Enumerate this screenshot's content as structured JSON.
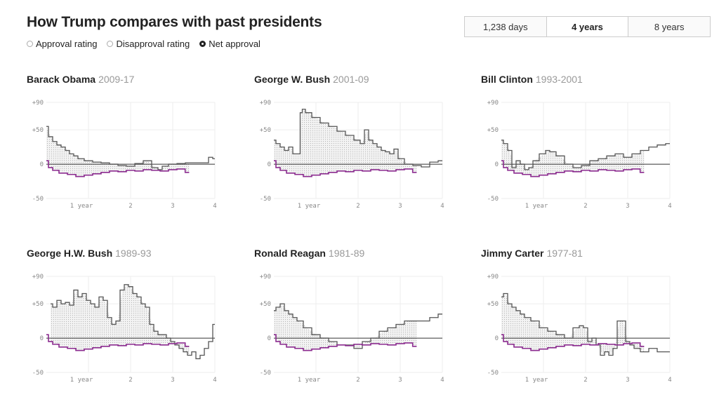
{
  "header": {
    "title": "How Trump compares with past presidents"
  },
  "metric_options": [
    {
      "label": "Approval rating",
      "selected": false
    },
    {
      "label": "Disapproval rating",
      "selected": false
    },
    {
      "label": "Net approval",
      "selected": true
    }
  ],
  "range_tabs": [
    {
      "label": "1,238 days",
      "active": false
    },
    {
      "label": "4 years",
      "active": true
    },
    {
      "label": "8 years",
      "active": false
    }
  ],
  "colors": {
    "president_line": "#555555",
    "trump_line": "#8b2b8f",
    "zero_line": "#333333",
    "grid": "#eeeeee"
  },
  "chart_data": [
    {
      "type": "line",
      "president": "Barack Obama",
      "years": "2009-17",
      "ylim": [
        -50,
        90
      ],
      "xlim": [
        0,
        4
      ],
      "y_ticks": [
        "+90",
        "+50",
        "0",
        "-50"
      ],
      "x_ticks": [
        "1 year",
        "2",
        "3",
        "4"
      ],
      "series": [
        {
          "name": "Barack Obama",
          "x": [
            0,
            0.1,
            0.2,
            0.3,
            0.4,
            0.5,
            0.6,
            0.7,
            0.8,
            1.0,
            1.2,
            1.4,
            1.6,
            1.8,
            2.0,
            2.2,
            2.4,
            2.6,
            2.7,
            2.8,
            3.0,
            3.2,
            3.4,
            3.6,
            3.8,
            3.9,
            4.0
          ],
          "y": [
            55,
            40,
            33,
            28,
            25,
            20,
            15,
            12,
            8,
            5,
            3,
            2,
            0,
            -2,
            -3,
            1,
            5,
            -5,
            -8,
            -3,
            0,
            1,
            2,
            2,
            2,
            10,
            8
          ]
        },
        {
          "name": "Donald Trump",
          "x": [
            0,
            0.1,
            0.2,
            0.4,
            0.6,
            0.8,
            1.0,
            1.2,
            1.4,
            1.6,
            1.8,
            2.0,
            2.2,
            2.4,
            2.6,
            2.8,
            3.0,
            3.2,
            3.39
          ],
          "y": [
            5,
            -5,
            -9,
            -13,
            -15,
            -18,
            -16,
            -14,
            -12,
            -10,
            -11,
            -9,
            -10,
            -8,
            -9,
            -10,
            -8,
            -7,
            -12
          ]
        }
      ]
    },
    {
      "type": "line",
      "president": "George W. Bush",
      "years": "2001-09",
      "ylim": [
        -50,
        90
      ],
      "xlim": [
        0,
        4
      ],
      "y_ticks": [
        "+90",
        "+50",
        "0",
        "-50"
      ],
      "x_ticks": [
        "1 year",
        "2",
        "3",
        "4"
      ],
      "series": [
        {
          "name": "George W. Bush",
          "x": [
            0,
            0.1,
            0.2,
            0.3,
            0.4,
            0.5,
            0.6,
            0.65,
            0.7,
            0.8,
            1.0,
            1.2,
            1.4,
            1.6,
            1.8,
            2.0,
            2.1,
            2.2,
            2.3,
            2.4,
            2.5,
            2.6,
            2.7,
            2.8,
            2.9,
            3.0,
            3.2,
            3.4,
            3.6,
            3.8,
            4.0
          ],
          "y": [
            35,
            30,
            25,
            20,
            25,
            15,
            15,
            75,
            80,
            75,
            68,
            60,
            55,
            48,
            42,
            35,
            30,
            50,
            35,
            30,
            25,
            20,
            18,
            15,
            22,
            8,
            0,
            -2,
            -4,
            3,
            5
          ]
        },
        {
          "name": "Donald Trump",
          "x": [
            0,
            0.1,
            0.2,
            0.4,
            0.6,
            0.8,
            1.0,
            1.2,
            1.4,
            1.6,
            1.8,
            2.0,
            2.2,
            2.4,
            2.6,
            2.8,
            3.0,
            3.2,
            3.39
          ],
          "y": [
            5,
            -5,
            -9,
            -13,
            -15,
            -18,
            -16,
            -14,
            -12,
            -10,
            -11,
            -9,
            -10,
            -8,
            -9,
            -10,
            -8,
            -7,
            -12
          ]
        }
      ]
    },
    {
      "type": "line",
      "president": "Bill Clinton",
      "years": "1993-2001",
      "ylim": [
        -50,
        90
      ],
      "xlim": [
        0,
        4
      ],
      "y_ticks": [
        "+90",
        "+50",
        "0",
        "-50"
      ],
      "x_ticks": [
        "1 year",
        "2",
        "3",
        "4"
      ],
      "series": [
        {
          "name": "Bill Clinton",
          "x": [
            0,
            0.1,
            0.2,
            0.3,
            0.4,
            0.5,
            0.6,
            0.7,
            0.8,
            1.0,
            1.1,
            1.2,
            1.4,
            1.6,
            1.8,
            2.0,
            2.2,
            2.4,
            2.6,
            2.8,
            3.0,
            3.2,
            3.4,
            3.6,
            3.8,
            4.0
          ],
          "y": [
            35,
            30,
            20,
            -5,
            5,
            0,
            -8,
            -5,
            5,
            15,
            20,
            18,
            12,
            0,
            -5,
            -2,
            5,
            8,
            12,
            15,
            10,
            15,
            20,
            25,
            28,
            30
          ]
        },
        {
          "name": "Donald Trump",
          "x": [
            0,
            0.1,
            0.2,
            0.4,
            0.6,
            0.8,
            1.0,
            1.2,
            1.4,
            1.6,
            1.8,
            2.0,
            2.2,
            2.4,
            2.6,
            2.8,
            3.0,
            3.2,
            3.39
          ],
          "y": [
            5,
            -5,
            -9,
            -13,
            -15,
            -18,
            -16,
            -14,
            -12,
            -10,
            -11,
            -9,
            -10,
            -8,
            -9,
            -10,
            -8,
            -7,
            -12
          ]
        }
      ]
    },
    {
      "type": "line",
      "president": "George H.W. Bush",
      "years": "1989-93",
      "ylim": [
        -50,
        90
      ],
      "xlim": [
        0,
        4
      ],
      "y_ticks": [
        "+90",
        "+50",
        "0",
        "-50"
      ],
      "x_ticks": [
        "1 year",
        "2",
        "3",
        "4"
      ],
      "series": [
        {
          "name": "George H.W. Bush",
          "x": [
            0.1,
            0.2,
            0.3,
            0.4,
            0.5,
            0.6,
            0.7,
            0.8,
            0.9,
            1.0,
            1.1,
            1.2,
            1.3,
            1.4,
            1.5,
            1.6,
            1.7,
            1.8,
            1.9,
            2.0,
            2.1,
            2.2,
            2.3,
            2.4,
            2.5,
            2.6,
            2.7,
            2.8,
            2.9,
            3.0,
            3.1,
            3.2,
            3.3,
            3.4,
            3.5,
            3.6,
            3.7,
            3.8,
            3.9,
            4.0
          ],
          "y": [
            50,
            45,
            55,
            50,
            52,
            48,
            70,
            60,
            65,
            55,
            50,
            45,
            60,
            55,
            30,
            20,
            25,
            70,
            78,
            75,
            65,
            60,
            50,
            45,
            20,
            10,
            5,
            5,
            0,
            -5,
            -10,
            -15,
            -20,
            -25,
            -20,
            -30,
            -25,
            -15,
            -5,
            20
          ]
        },
        {
          "name": "Donald Trump",
          "x": [
            0,
            0.1,
            0.2,
            0.4,
            0.6,
            0.8,
            1.0,
            1.2,
            1.4,
            1.6,
            1.8,
            2.0,
            2.2,
            2.4,
            2.6,
            2.8,
            3.0,
            3.2,
            3.39
          ],
          "y": [
            5,
            -5,
            -9,
            -13,
            -15,
            -18,
            -16,
            -14,
            -12,
            -10,
            -11,
            -9,
            -10,
            -8,
            -9,
            -10,
            -8,
            -7,
            -12
          ]
        }
      ]
    },
    {
      "type": "line",
      "president": "Ronald Reagan",
      "years": "1981-89",
      "ylim": [
        -50,
        90
      ],
      "xlim": [
        0,
        4
      ],
      "y_ticks": [
        "+90",
        "+50",
        "0",
        "-50"
      ],
      "x_ticks": [
        "1 year",
        "2",
        "3",
        "4"
      ],
      "series": [
        {
          "name": "Ronald Reagan",
          "x": [
            0,
            0.1,
            0.2,
            0.3,
            0.4,
            0.5,
            0.6,
            0.8,
            1.0,
            1.2,
            1.4,
            1.6,
            1.8,
            2.0,
            2.2,
            2.4,
            2.6,
            2.8,
            3.0,
            3.2,
            3.4,
            3.6,
            3.8,
            4.0
          ],
          "y": [
            40,
            45,
            50,
            40,
            35,
            30,
            25,
            15,
            5,
            0,
            -5,
            -10,
            -10,
            -15,
            -5,
            0,
            10,
            15,
            20,
            25,
            25,
            25,
            30,
            35
          ]
        },
        {
          "name": "Donald Trump",
          "x": [
            0,
            0.1,
            0.2,
            0.4,
            0.6,
            0.8,
            1.0,
            1.2,
            1.4,
            1.6,
            1.8,
            2.0,
            2.2,
            2.4,
            2.6,
            2.8,
            3.0,
            3.2,
            3.39
          ],
          "y": [
            5,
            -5,
            -9,
            -13,
            -15,
            -18,
            -16,
            -14,
            -12,
            -10,
            -11,
            -9,
            -10,
            -8,
            -9,
            -10,
            -8,
            -7,
            -12
          ]
        }
      ]
    },
    {
      "type": "line",
      "president": "Jimmy Carter",
      "years": "1977-81",
      "ylim": [
        -50,
        90
      ],
      "xlim": [
        0,
        4
      ],
      "y_ticks": [
        "+90",
        "+50",
        "0",
        "-50"
      ],
      "x_ticks": [
        "1 year",
        "2",
        "3",
        "4"
      ],
      "series": [
        {
          "name": "Jimmy Carter",
          "x": [
            0,
            0.1,
            0.2,
            0.3,
            0.4,
            0.5,
            0.6,
            0.8,
            1.0,
            1.2,
            1.4,
            1.6,
            1.8,
            1.9,
            2.0,
            2.1,
            2.2,
            2.3,
            2.4,
            2.5,
            2.6,
            2.7,
            2.8,
            2.9,
            3.0,
            3.1,
            3.2,
            3.4,
            3.6,
            3.8,
            4.0
          ],
          "y": [
            60,
            65,
            50,
            45,
            40,
            35,
            30,
            25,
            15,
            10,
            5,
            0,
            15,
            18,
            15,
            -5,
            0,
            -10,
            -25,
            -20,
            -25,
            -15,
            25,
            25,
            -5,
            -10,
            -15,
            -20,
            -15,
            -20,
            -20
          ]
        },
        {
          "name": "Donald Trump",
          "x": [
            0,
            0.1,
            0.2,
            0.4,
            0.6,
            0.8,
            1.0,
            1.2,
            1.4,
            1.6,
            1.8,
            2.0,
            2.2,
            2.4,
            2.6,
            2.8,
            3.0,
            3.2,
            3.39
          ],
          "y": [
            5,
            -5,
            -9,
            -13,
            -15,
            -18,
            -16,
            -14,
            -12,
            -10,
            -11,
            -9,
            -10,
            -8,
            -9,
            -10,
            -8,
            -7,
            -12
          ]
        }
      ]
    }
  ]
}
